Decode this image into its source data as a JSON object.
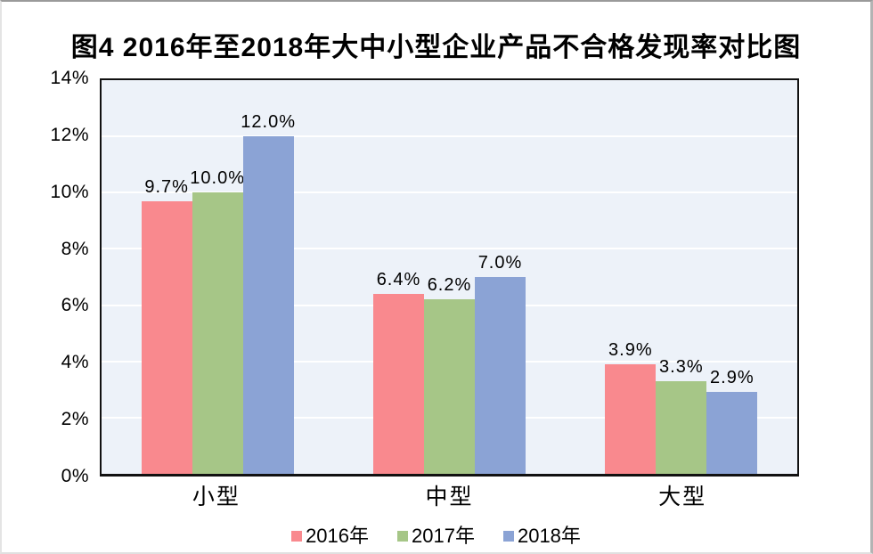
{
  "title": "图4 2016年至2018年大中小型企业产品不合格发现率对比图",
  "chart_data": {
    "type": "bar",
    "title": "图4 2016年至2018年大中小型企业产品不合格发现率对比图",
    "categories": [
      "小型",
      "中型",
      "大型"
    ],
    "series": [
      {
        "name": "2016年",
        "color": "#f9898e",
        "values": [
          9.7,
          6.4,
          3.9
        ],
        "labels": [
          "9.7%",
          "6.4%",
          "3.9%"
        ]
      },
      {
        "name": "2017年",
        "color": "#a6c687",
        "values": [
          10.0,
          6.2,
          3.3
        ],
        "labels": [
          "10.0%",
          "6.2%",
          "3.3%"
        ]
      },
      {
        "name": "2018年",
        "color": "#8ba3d5",
        "values": [
          12.0,
          7.0,
          2.9
        ],
        "labels": [
          "12.0%",
          "7.0%",
          "2.9%"
        ]
      }
    ],
    "xlabel": "",
    "ylabel": "",
    "ylim": [
      0,
      14
    ],
    "ytick_step": 2,
    "ytick_labels": [
      "0%",
      "2%",
      "4%",
      "6%",
      "8%",
      "10%",
      "12%",
      "14%"
    ],
    "grid": true,
    "gridline_color": "#ffffff",
    "plot_background": "#edf2f9",
    "axis_border_color": "#111111",
    "legend_position": "bottom",
    "legend_entries": [
      "2016年",
      "2017年",
      "2018年"
    ]
  }
}
